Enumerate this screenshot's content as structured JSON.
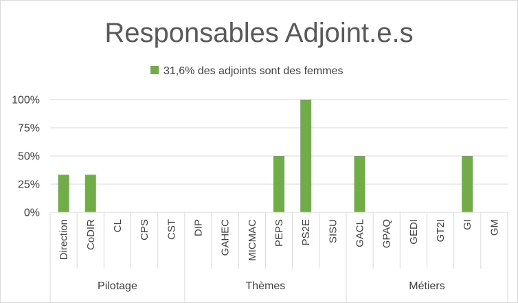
{
  "chart_data": {
    "type": "bar",
    "title": "Responsables Adjoint.e.s",
    "legend": {
      "position": "top",
      "entries": [
        "31,6% des adjoints sont des femmes"
      ]
    },
    "series": [
      {
        "name": "31,6% des adjoints sont des femmes",
        "color": "#70ad47",
        "values": [
          33.3,
          33.3,
          0,
          0,
          0,
          0,
          0,
          0,
          50,
          100,
          0,
          50,
          0,
          0,
          0,
          50,
          0
        ]
      }
    ],
    "categories": [
      "Direction",
      "CoDIR",
      "CL",
      "CPS",
      "CST",
      "DIP",
      "GAHEC",
      "MICMAC",
      "PEPS",
      "PS2E",
      "SISU",
      "GACL",
      "GPAQ",
      "GEDI",
      "GT2I",
      "GI",
      "GM"
    ],
    "groups": [
      {
        "label": "Pilotage",
        "count": 5
      },
      {
        "label": "Thèmes",
        "count": 6
      },
      {
        "label": "Métiers",
        "count": 6
      }
    ],
    "yticks": [
      "0%",
      "25%",
      "50%",
      "75%",
      "100%"
    ],
    "ylim": [
      0,
      100
    ],
    "grid": true,
    "xlabel": "",
    "ylabel": ""
  }
}
